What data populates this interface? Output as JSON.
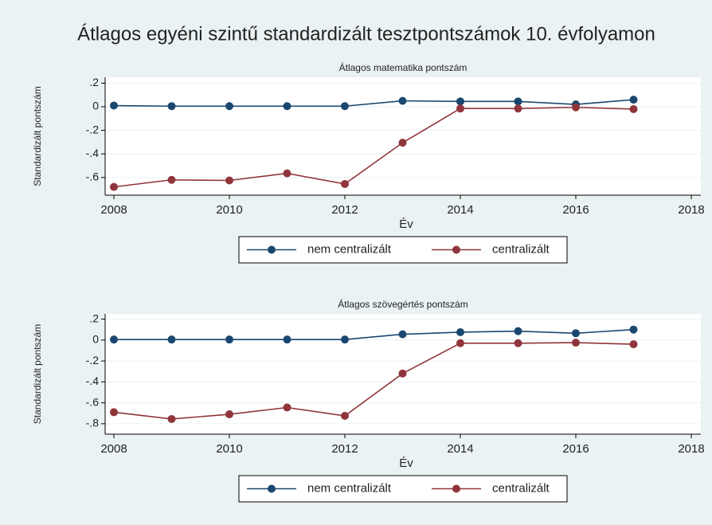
{
  "title": "Átlagos egyéni szintű standardizált tesztpontszámok 10. évfolyamon",
  "chart_data": [
    {
      "type": "line",
      "title": "Átlagos matematika pontszám",
      "xlabel": "Év",
      "ylabel": "Standardizált pontszám",
      "x": [
        2008,
        2009,
        2010,
        2011,
        2012,
        2013,
        2014,
        2015,
        2016,
        2017
      ],
      "xlim": [
        2008,
        2018
      ],
      "xticks": [
        2008,
        2010,
        2012,
        2014,
        2016,
        2018
      ],
      "ylim": [
        -0.75,
        0.25
      ],
      "yticks": [
        {
          "value": -0.6,
          "label": "-.6"
        },
        {
          "value": -0.4,
          "label": "-.4"
        },
        {
          "value": -0.2,
          "label": "-.2"
        },
        0,
        {
          "value": 0.2,
          "label": ".2"
        }
      ],
      "grid": true,
      "series": [
        {
          "name": "nem centralizált",
          "color": "#1a476f",
          "values": [
            0.01,
            0.005,
            0.005,
            0.005,
            0.005,
            0.05,
            0.045,
            0.045,
            0.02,
            0.06
          ]
        },
        {
          "name": "centralizált",
          "color": "#90353b",
          "values": [
            -0.68,
            -0.62,
            -0.625,
            -0.565,
            -0.655,
            -0.305,
            -0.015,
            -0.015,
            -0.005,
            -0.02
          ]
        }
      ]
    },
    {
      "type": "line",
      "title": "Átlagos szövegértés pontszám",
      "xlabel": "Év",
      "ylabel": "Standardizált pontszám",
      "x": [
        2008,
        2009,
        2010,
        2011,
        2012,
        2013,
        2014,
        2015,
        2016,
        2017
      ],
      "xlim": [
        2008,
        2018
      ],
      "xticks": [
        2008,
        2010,
        2012,
        2014,
        2016,
        2018
      ],
      "ylim": [
        -0.9,
        0.25
      ],
      "yticks": [
        {
          "value": -0.8,
          "label": "-.8"
        },
        {
          "value": -0.6,
          "label": "-.6"
        },
        {
          "value": -0.4,
          "label": "-.4"
        },
        {
          "value": -0.2,
          "label": "-.2"
        },
        0,
        {
          "value": 0.2,
          "label": ".2"
        }
      ],
      "grid": true,
      "series": [
        {
          "name": "nem centralizált",
          "color": "#1a476f",
          "values": [
            0.005,
            0.005,
            0.005,
            0.005,
            0.005,
            0.055,
            0.075,
            0.085,
            0.065,
            0.1
          ]
        },
        {
          "name": "centralizált",
          "color": "#90353b",
          "values": [
            -0.69,
            -0.755,
            -0.71,
            -0.645,
            -0.725,
            -0.32,
            -0.03,
            -0.03,
            -0.025,
            -0.04
          ]
        }
      ]
    }
  ]
}
